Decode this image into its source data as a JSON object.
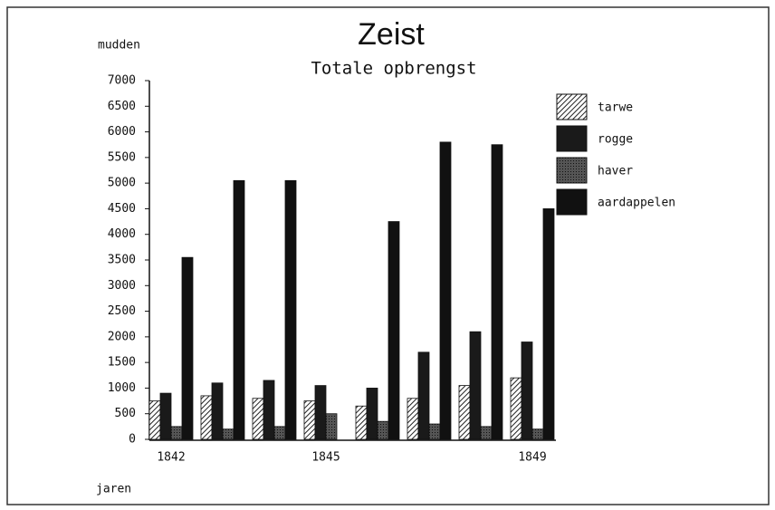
{
  "chart_data": {
    "type": "bar",
    "title": "Zeist",
    "subtitle": "Totale opbrengst",
    "y_label": "mudden",
    "x_label": "jaren",
    "categories": [
      "1842",
      null,
      null,
      "1845",
      null,
      null,
      null,
      "1849"
    ],
    "series": [
      {
        "name": "tarwe",
        "color": "#888888",
        "pattern": "hatch",
        "values": [
          750,
          850,
          800,
          750,
          650,
          800,
          1050,
          1200
        ]
      },
      {
        "name": "rogge",
        "color": "#1a1a1a",
        "values": [
          900,
          1100,
          1150,
          1050,
          1000,
          1700,
          2100,
          1900
        ]
      },
      {
        "name": "haver",
        "color": "#3a3a3a",
        "pattern": "dots",
        "values": [
          250,
          200,
          250,
          500,
          350,
          300,
          250,
          200
        ]
      },
      {
        "name": "aardappelen",
        "color": "#111111",
        "values": [
          3550,
          5050,
          5050,
          null,
          4250,
          5800,
          5750,
          4500
        ]
      }
    ],
    "ylim": [
      0,
      7000
    ],
    "yticks": [
      0,
      500,
      1000,
      1500,
      2000,
      2500,
      3000,
      3500,
      4000,
      4500,
      5000,
      5500,
      6000,
      6500,
      7000
    ],
    "legend": "right"
  }
}
